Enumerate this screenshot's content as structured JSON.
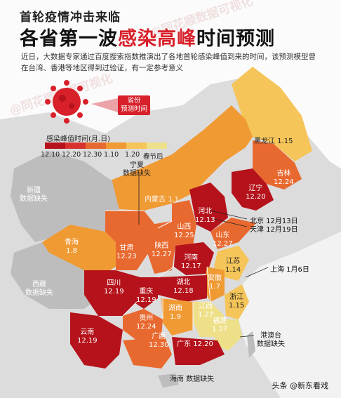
{
  "header": {
    "title_line1": "首轮疫情冲击来临",
    "title_line2_pre": "各省第一波",
    "title_line2_highlight": "感染高峰",
    "title_line2_post": "时间预测",
    "intro": "近日，大数据专家通过百度搜索指数推演出了各地首轮感染峰值到来的时间，该预测模型曾在台湾、香港等地区得到过验证，有一定参考意义"
  },
  "badge": {
    "text_line1": "省份",
    "text_line2": "预测时间"
  },
  "legend": {
    "title": "感染峰值时间(月.日)",
    "ticks": [
      "12.10",
      "12.20",
      "12.30",
      "1.10",
      "1.20",
      "春节后"
    ],
    "colors": [
      "#b5121b",
      "#d8322e",
      "#e8692f",
      "#f09a34",
      "#f5c55a",
      "#eee089"
    ]
  },
  "watermark": "@同花顺数据可视化",
  "provinces": [
    {
      "name": "黑龙江",
      "value": "1.15"
    },
    {
      "name": "吉林",
      "value": "12.24"
    },
    {
      "name": "辽宁",
      "value": "12.20"
    },
    {
      "name": "内蒙古",
      "value": "1.1"
    },
    {
      "name": "河北",
      "value": "12.13"
    },
    {
      "name": "山西",
      "value": "12.25"
    },
    {
      "name": "山东",
      "value": "12.27"
    },
    {
      "name": "陕西",
      "value": "12.27"
    },
    {
      "name": "甘肃",
      "value": "12.23"
    },
    {
      "name": "青海",
      "value": "1.8"
    },
    {
      "name": "河南",
      "value": "12.17"
    },
    {
      "name": "江苏",
      "value": "1.14"
    },
    {
      "name": "安徽",
      "value": "1.7"
    },
    {
      "name": "湖北",
      "value": "12.18"
    },
    {
      "name": "四川",
      "value": "12.19"
    },
    {
      "name": "重庆",
      "value": "12.19"
    },
    {
      "name": "浙江",
      "value": "1.15"
    },
    {
      "name": "湖南",
      "value": "1.9"
    },
    {
      "name": "江西",
      "value": "1.27"
    },
    {
      "name": "贵州",
      "value": "12.24"
    },
    {
      "name": "福建",
      "value": "1.27"
    },
    {
      "name": "云南",
      "value": "12.19"
    },
    {
      "name": "广西",
      "value": "12.30"
    },
    {
      "name": "广东",
      "value": "12.20"
    }
  ],
  "no_data": {
    "ningxia": "宁夏",
    "ningxia_note": "数据缺失",
    "xinjiang": "新疆",
    "xinjiang_note": "数据缺失",
    "tibet": "西藏",
    "tibet_note": "数据缺失",
    "hainan": "海南",
    "hainan_note": "数据缺失",
    "hmt": "港澳台",
    "hmt_note": "数据缺失"
  },
  "callouts": {
    "beijing": "北京  12月13日",
    "tianjin": "天津  12月19日",
    "shanghai": "上海  1月6日"
  },
  "footer": {
    "source": "头条 @新东看戏"
  }
}
